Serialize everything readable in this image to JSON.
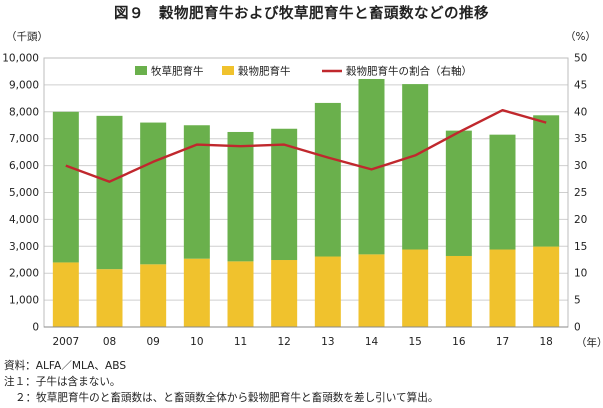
{
  "chart_data": {
    "type": "bar",
    "stacked": true,
    "title": "図９　穀物肥育牛および牧草肥育牛と畜頭数などの推移",
    "categories": [
      "2007",
      "08",
      "09",
      "10",
      "11",
      "12",
      "13",
      "14",
      "15",
      "16",
      "17",
      "18"
    ],
    "series": [
      {
        "name": "牧草肥育牛",
        "type": "bar",
        "axis": "left",
        "color": "#6ab04c",
        "values": [
          5600,
          5700,
          5270,
          4960,
          4810,
          4880,
          5710,
          6520,
          6150,
          4660,
          4270,
          4880
        ]
      },
      {
        "name": "穀物肥育牛",
        "type": "bar",
        "axis": "left",
        "color": "#f0c22d",
        "values": [
          2400,
          2150,
          2330,
          2540,
          2440,
          2490,
          2620,
          2700,
          2880,
          2640,
          2880,
          2990
        ]
      },
      {
        "name": "穀物肥育牛の割合（右軸）",
        "type": "line",
        "axis": "right",
        "color": "#c0282d",
        "values": [
          30,
          27,
          30.7,
          33.9,
          33.6,
          33.9,
          31.5,
          29.3,
          31.9,
          36.2,
          40.3,
          38
        ]
      }
    ],
    "y_left": {
      "unit": "（千頭）",
      "ylim": [
        0,
        10000
      ],
      "ticks": [
        "0",
        "1,000",
        "2,000",
        "3,000",
        "4,000",
        "5,000",
        "6,000",
        "7,000",
        "8,000",
        "9,000",
        "10,000"
      ]
    },
    "y_right": {
      "unit": "（%）",
      "ylim": [
        0,
        50
      ],
      "ticks": [
        "0",
        "5",
        "10",
        "15",
        "20",
        "25",
        "30",
        "35",
        "40",
        "45",
        "50"
      ]
    },
    "x_unit": "（年）",
    "grid": true,
    "legend_position": "top-inside"
  },
  "notes": {
    "source": "資料：ALFA／MLA、ABS",
    "note1": "注１：子牛は含まない。",
    "note2": "２：牧草肥育牛のと畜頭数は、と畜頭数全体から穀物肥育牛と畜頭数を差し引いて算出。"
  },
  "colors": {
    "gridline": "#cfcfcf",
    "axis": "#888888",
    "plot_border": "#bdbdbd"
  }
}
